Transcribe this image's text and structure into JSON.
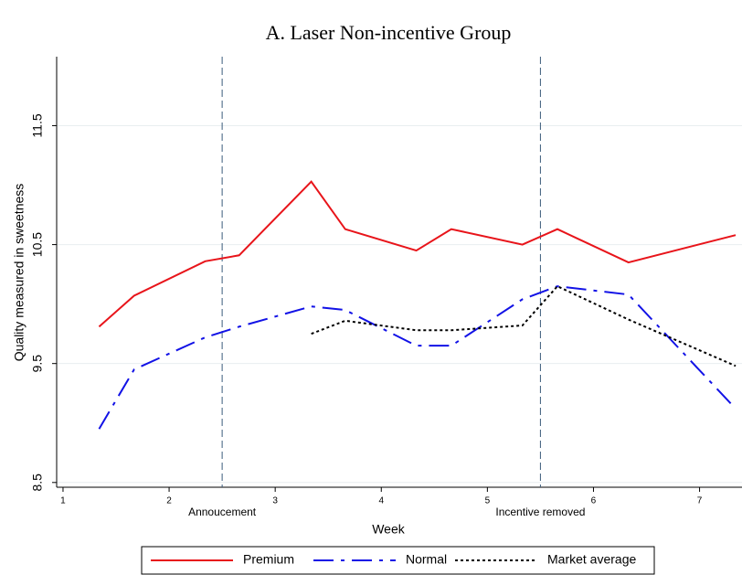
{
  "chart_data": {
    "type": "line",
    "title": "A. Laser Non-incentive Group",
    "x_label": "Week",
    "y_label": "Quality measured in sweetness",
    "x": [
      1.34,
      1.67,
      2.34,
      2.66,
      3.34,
      3.66,
      4.33,
      4.66,
      5.33,
      5.66,
      6.33,
      7.34
    ],
    "series": [
      {
        "name": "Premium",
        "color": "#e8141a",
        "dash": "solid",
        "values": [
          9.81,
          10.07,
          10.36,
          10.41,
          11.03,
          10.63,
          10.45,
          10.63,
          10.5,
          10.63,
          10.35,
          10.58
        ]
      },
      {
        "name": "Normal",
        "color": "#1212e6",
        "dash": "longdash",
        "values": [
          8.95,
          9.45,
          9.72,
          9.81,
          9.98,
          9.95,
          9.65,
          9.65,
          10.04,
          10.15,
          10.08,
          9.12
        ]
      },
      {
        "name": "Market average",
        "color": "#000000",
        "dash": "dot",
        "values": [
          null,
          null,
          null,
          null,
          9.75,
          9.86,
          9.78,
          9.78,
          9.82,
          10.15,
          9.87,
          9.48
        ]
      }
    ],
    "annotations": [
      {
        "x": 2.5,
        "label": "Annoucement"
      },
      {
        "x": 5.5,
        "label": "Incentive removed"
      }
    ],
    "xlim": [
      0.94,
      7.4
    ],
    "xticks": [
      1,
      2,
      3,
      4,
      5,
      6,
      7
    ],
    "ylim": [
      8.46,
      12.08
    ],
    "yticks": [
      8.5,
      9.5,
      10.5,
      11.5
    ],
    "grid": true,
    "legend": "bottom"
  }
}
